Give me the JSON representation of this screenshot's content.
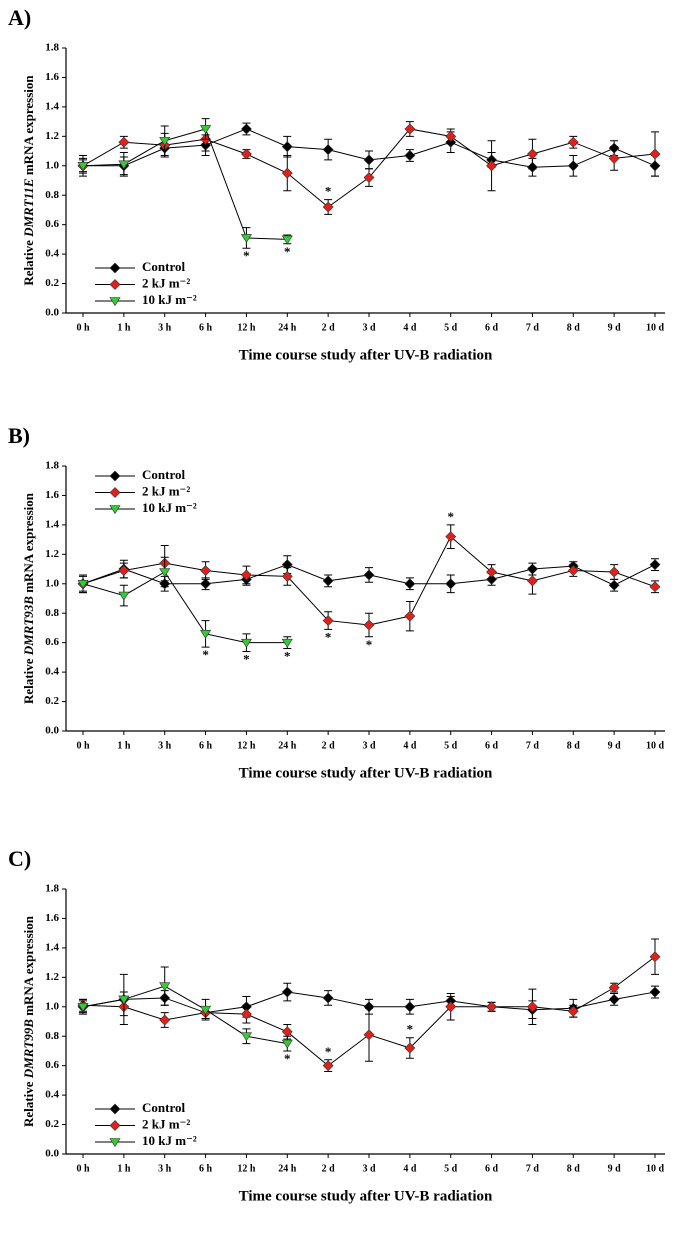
{
  "chart_data": [
    {
      "type": "line",
      "label": "A)",
      "ylabel": [
        "Relative ",
        "DMRT11E",
        " mRNA expression"
      ],
      "xlabel": "Time course study after UV-B radiation",
      "categories": [
        "0 h",
        "1 h",
        "3 h",
        "6 h",
        "12 h",
        "24 h",
        "2 d",
        "3 d",
        "4 d",
        "5 d",
        "6 d",
        "7 d",
        "8 d",
        "9 d",
        "10 d"
      ],
      "ylim": [
        0,
        1.8
      ],
      "yticks": [
        {
          "value": 0,
          "label": "0.0"
        },
        0.2,
        0.4,
        0.6,
        0.8,
        {
          "value": 1,
          "label": "1.0"
        },
        1.2,
        1.4,
        1.6,
        1.8
      ],
      "legend": "lower left",
      "series": [
        {
          "name": "Control",
          "color": "#000000",
          "marker": "diamond",
          "values": [
            1.0,
            1.0,
            1.12,
            1.14,
            1.25,
            1.13,
            1.11,
            1.04,
            1.07,
            1.16,
            1.04,
            0.99,
            1.0,
            1.12,
            1.0
          ],
          "errors": [
            0.05,
            0.06,
            0.06,
            0.07,
            0.04,
            0.07,
            0.07,
            0.06,
            0.04,
            0.07,
            0.05,
            0.06,
            0.07,
            0.05,
            0.07
          ]
        },
        {
          "name": "2 kJ m⁻²",
          "color": "#e0201b",
          "marker": "diamond",
          "values": [
            1.0,
            1.16,
            1.14,
            1.18,
            1.08,
            0.95,
            0.72,
            0.92,
            1.25,
            1.2,
            1.0,
            1.08,
            1.16,
            1.05,
            1.08
          ],
          "errors": [
            0.04,
            0.04,
            0.08,
            0.08,
            0.03,
            0.12,
            0.05,
            0.06,
            0.05,
            0.05,
            0.17,
            0.1,
            0.04,
            0.08,
            0.15
          ]
        },
        {
          "name": "10 kJ m⁻²",
          "color": "#33cc33",
          "marker": "triangle-down",
          "values": [
            1.0,
            1.01,
            1.17,
            1.25,
            0.51,
            0.5,
            null,
            null,
            null,
            null,
            null,
            null,
            null,
            null,
            null
          ],
          "errors": [
            0.07,
            0.08,
            0.1,
            0.07,
            0.07,
            0.03,
            null,
            null,
            null,
            null,
            null,
            null,
            null,
            null,
            null
          ]
        }
      ],
      "annotations": [
        {
          "text": "*",
          "series": 1,
          "index": 6,
          "position": "above"
        },
        {
          "text": "*",
          "series": 2,
          "index": 4,
          "position": "below"
        },
        {
          "text": "*",
          "series": 2,
          "index": 5,
          "position": "below"
        }
      ]
    },
    {
      "type": "line",
      "label": "B)",
      "ylabel": [
        "Relative ",
        "DMRT93B",
        " mRNA expression"
      ],
      "xlabel": "Time course study after UV-B radiation",
      "categories": [
        "0 h",
        "1 h",
        "3 h",
        "6 h",
        "12 h",
        "24 h",
        "2 d",
        "3 d",
        "4 d",
        "5 d",
        "6 d",
        "7 d",
        "8 d",
        "9 d",
        "10 d"
      ],
      "ylim": [
        0,
        1.8
      ],
      "yticks": [
        {
          "value": 0,
          "label": "0.0"
        },
        0.2,
        0.4,
        0.6,
        0.8,
        {
          "value": 1,
          "label": "1.0"
        },
        1.2,
        1.4,
        1.6,
        1.8
      ],
      "legend": "upper left",
      "series": [
        {
          "name": "Control",
          "color": "#000000",
          "marker": "diamond",
          "values": [
            1.0,
            1.1,
            1.0,
            1.0,
            1.03,
            1.13,
            1.02,
            1.06,
            1.0,
            1.0,
            1.03,
            1.1,
            1.12,
            0.99,
            1.13
          ],
          "errors": [
            0.06,
            0.06,
            0.05,
            0.04,
            0.04,
            0.06,
            0.04,
            0.05,
            0.04,
            0.06,
            0.04,
            0.04,
            0.03,
            0.04,
            0.04
          ]
        },
        {
          "name": "2 kJ m⁻²",
          "color": "#e0201b",
          "marker": "diamond",
          "values": [
            1.0,
            1.09,
            1.14,
            1.09,
            1.06,
            1.05,
            0.75,
            0.72,
            0.78,
            1.32,
            1.08,
            1.02,
            1.09,
            1.08,
            0.98
          ],
          "errors": [
            0.06,
            0.05,
            0.12,
            0.06,
            0.06,
            0.06,
            0.06,
            0.08,
            0.1,
            0.08,
            0.05,
            0.09,
            0.04,
            0.05,
            0.04
          ]
        },
        {
          "name": "10 kJ m⁻²",
          "color": "#33cc33",
          "marker": "triangle-down",
          "values": [
            1.0,
            0.92,
            1.08,
            0.66,
            0.6,
            0.6,
            null,
            null,
            null,
            null,
            null,
            null,
            null,
            null,
            null
          ],
          "errors": [
            0.05,
            0.07,
            0.1,
            0.09,
            0.06,
            0.04,
            null,
            null,
            null,
            null,
            null,
            null,
            null,
            null,
            null
          ]
        }
      ],
      "annotations": [
        {
          "text": "*",
          "series": 2,
          "index": 3,
          "position": "below"
        },
        {
          "text": "*",
          "series": 2,
          "index": 4,
          "position": "below"
        },
        {
          "text": "*",
          "series": 2,
          "index": 5,
          "position": "below"
        },
        {
          "text": "*",
          "series": 1,
          "index": 6,
          "position": "below"
        },
        {
          "text": "*",
          "series": 1,
          "index": 7,
          "position": "below"
        },
        {
          "text": "*",
          "series": 1,
          "index": 9,
          "position": "above"
        }
      ]
    },
    {
      "type": "line",
      "label": "C)",
      "ylabel": [
        "Relative ",
        "DMRT99B",
        " mRNA expression"
      ],
      "xlabel": "Time course study after UV-B radiation",
      "categories": [
        "0 h",
        "1 h",
        "3 h",
        "6 h",
        "12 h",
        "24 h",
        "2 d",
        "3 d",
        "4 d",
        "5 d",
        "6 d",
        "7 d",
        "8 d",
        "9 d",
        "10 d"
      ],
      "ylim": [
        0,
        1.8
      ],
      "yticks": [
        {
          "value": 0,
          "label": "0.0"
        },
        0.2,
        0.4,
        0.6,
        0.8,
        {
          "value": 1,
          "label": "1.0"
        },
        1.2,
        1.4,
        1.6,
        1.8
      ],
      "legend": "lower left",
      "series": [
        {
          "name": "Control",
          "color": "#000000",
          "marker": "diamond",
          "values": [
            1.0,
            1.05,
            1.06,
            0.96,
            1.0,
            1.1,
            1.06,
            1.0,
            1.0,
            1.04,
            1.0,
            0.98,
            0.99,
            1.05,
            1.1
          ],
          "errors": [
            0.05,
            0.05,
            0.05,
            0.04,
            0.07,
            0.06,
            0.05,
            0.05,
            0.05,
            0.03,
            0.03,
            0.06,
            0.06,
            0.04,
            0.04
          ]
        },
        {
          "name": "2 kJ m⁻²",
          "color": "#e0201b",
          "marker": "diamond",
          "values": [
            1.01,
            1.0,
            0.91,
            0.96,
            0.95,
            0.83,
            0.6,
            0.81,
            0.72,
            1.0,
            1.0,
            1.0,
            0.97,
            1.13,
            1.34
          ],
          "errors": [
            0.04,
            0.06,
            0.05,
            0.04,
            0.06,
            0.05,
            0.04,
            0.18,
            0.07,
            0.09,
            0.03,
            0.12,
            0.04,
            0.03,
            0.12
          ]
        },
        {
          "name": "10 kJ m⁻²",
          "color": "#33cc33",
          "marker": "triangle-down",
          "values": [
            1.0,
            1.05,
            1.14,
            0.98,
            0.8,
            0.75,
            null,
            null,
            null,
            null,
            null,
            null,
            null,
            null,
            null
          ],
          "errors": [
            0.04,
            0.17,
            0.13,
            0.07,
            0.05,
            0.05,
            null,
            null,
            null,
            null,
            null,
            null,
            null,
            null,
            null
          ]
        }
      ],
      "annotations": [
        {
          "text": "*",
          "series": 2,
          "index": 5,
          "position": "below"
        },
        {
          "text": "*",
          "series": 1,
          "index": 6,
          "position": "above"
        },
        {
          "text": "*",
          "series": 1,
          "index": 8,
          "position": "above"
        }
      ]
    }
  ]
}
